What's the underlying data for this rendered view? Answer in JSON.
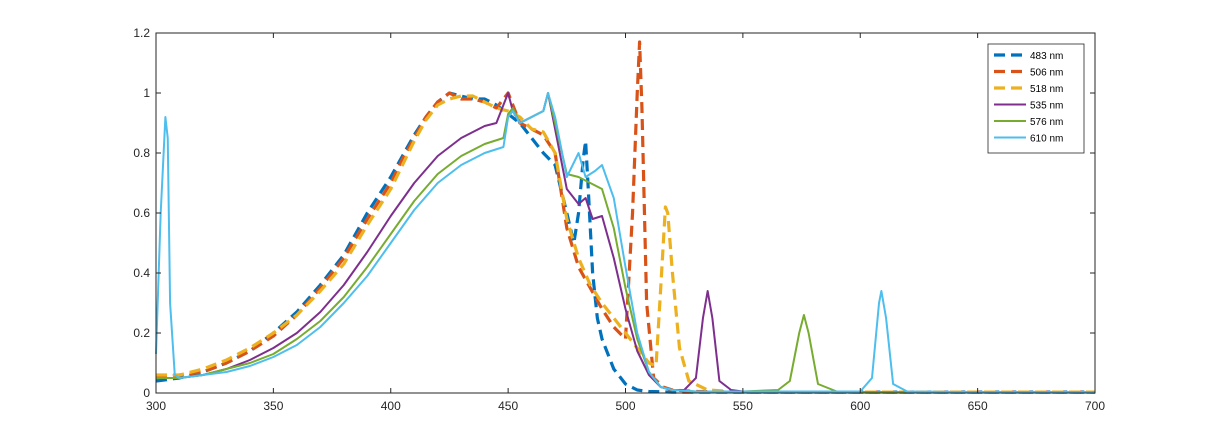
{
  "chart_data": {
    "type": "line",
    "title": "",
    "xlabel": "",
    "ylabel": "",
    "xlim": [
      300,
      700
    ],
    "ylim": [
      0,
      1.2
    ],
    "x_ticks": [
      300,
      350,
      400,
      450,
      500,
      550,
      600,
      650,
      700
    ],
    "x_tick_labels": [
      "300",
      "350",
      "400",
      "450",
      "500",
      "550",
      "600",
      "650",
      "700"
    ],
    "y_ticks": [
      0,
      0.2,
      0.4,
      0.6,
      0.8,
      1,
      1.2
    ],
    "y_tick_labels": [
      "0",
      "0.2",
      "0.4",
      "0.6",
      "0.8",
      "1",
      "1.2"
    ],
    "grid": false,
    "legend_position": "top-right",
    "series": [
      {
        "name": "483 nm",
        "color": "#0072BD",
        "dashed": true,
        "x": [
          300,
          310,
          320,
          330,
          340,
          350,
          360,
          370,
          380,
          390,
          400,
          405,
          410,
          415,
          420,
          425,
          430,
          435,
          440,
          445,
          450,
          455,
          460,
          465,
          470,
          475,
          478,
          480,
          482,
          483,
          484,
          486,
          488,
          490,
          495,
          500,
          505,
          510,
          520,
          540,
          560,
          600,
          650,
          700
        ],
        "y": [
          0.04,
          0.05,
          0.07,
          0.1,
          0.14,
          0.2,
          0.27,
          0.36,
          0.46,
          0.6,
          0.72,
          0.79,
          0.86,
          0.92,
          0.97,
          1.0,
          0.99,
          0.98,
          0.98,
          0.96,
          0.93,
          0.9,
          0.85,
          0.8,
          0.76,
          0.6,
          0.5,
          0.6,
          0.78,
          0.84,
          0.7,
          0.4,
          0.25,
          0.18,
          0.08,
          0.03,
          0.01,
          0.005,
          0.003,
          0.003,
          0.003,
          0.003,
          0.003,
          0.003
        ]
      },
      {
        "name": "506 nm",
        "color": "#D95319",
        "dashed": true,
        "x": [
          300,
          310,
          320,
          330,
          340,
          350,
          360,
          370,
          380,
          390,
          400,
          405,
          410,
          415,
          420,
          425,
          430,
          435,
          440,
          445,
          450,
          452,
          455,
          460,
          465,
          470,
          475,
          480,
          485,
          490,
          495,
          500,
          503,
          505,
          506,
          507,
          509,
          512,
          516,
          520,
          530,
          550,
          600,
          650,
          700
        ],
        "y": [
          0.05,
          0.06,
          0.07,
          0.1,
          0.14,
          0.19,
          0.26,
          0.35,
          0.45,
          0.58,
          0.7,
          0.78,
          0.85,
          0.92,
          0.97,
          1.0,
          0.98,
          0.98,
          0.97,
          0.95,
          1.0,
          0.96,
          0.9,
          0.88,
          0.86,
          0.8,
          0.55,
          0.42,
          0.35,
          0.28,
          0.22,
          0.18,
          0.6,
          1.0,
          1.17,
          0.95,
          0.3,
          0.05,
          0.02,
          0.01,
          0.005,
          0.003,
          0.003,
          0.003,
          0.003
        ]
      },
      {
        "name": "518 nm",
        "color": "#EDB120",
        "dashed": true,
        "x": [
          300,
          310,
          320,
          330,
          340,
          350,
          360,
          370,
          380,
          390,
          400,
          405,
          410,
          415,
          420,
          425,
          430,
          435,
          440,
          445,
          450,
          455,
          460,
          465,
          470,
          475,
          480,
          485,
          490,
          495,
          500,
          505,
          510,
          513,
          515,
          517,
          518,
          520,
          523,
          527,
          535,
          550,
          600,
          650,
          700
        ],
        "y": [
          0.06,
          0.06,
          0.08,
          0.11,
          0.15,
          0.2,
          0.26,
          0.34,
          0.43,
          0.56,
          0.68,
          0.76,
          0.84,
          0.91,
          0.96,
          0.98,
          0.99,
          0.99,
          0.97,
          0.95,
          0.94,
          0.92,
          0.88,
          0.87,
          0.8,
          0.58,
          0.45,
          0.36,
          0.3,
          0.25,
          0.2,
          0.15,
          0.1,
          0.09,
          0.35,
          0.62,
          0.6,
          0.4,
          0.15,
          0.04,
          0.01,
          0.003,
          0.003,
          0.003,
          0.003
        ]
      },
      {
        "name": "535 nm",
        "color": "#7E2F8E",
        "dashed": false,
        "x": [
          300,
          310,
          320,
          330,
          340,
          350,
          360,
          370,
          380,
          390,
          400,
          410,
          420,
          430,
          440,
          445,
          448,
          450,
          452,
          455,
          460,
          465,
          467,
          470,
          475,
          480,
          483,
          486,
          490,
          495,
          500,
          505,
          510,
          515,
          520,
          525,
          530,
          533,
          535,
          537,
          540,
          545,
          550,
          600,
          650,
          700
        ],
        "y": [
          0.05,
          0.05,
          0.06,
          0.08,
          0.11,
          0.15,
          0.2,
          0.27,
          0.36,
          0.47,
          0.59,
          0.7,
          0.79,
          0.85,
          0.89,
          0.9,
          0.96,
          1.0,
          0.94,
          0.9,
          0.92,
          0.94,
          1.0,
          0.88,
          0.68,
          0.63,
          0.65,
          0.58,
          0.59,
          0.45,
          0.28,
          0.14,
          0.06,
          0.02,
          0.01,
          0.01,
          0.05,
          0.25,
          0.34,
          0.25,
          0.04,
          0.01,
          0.005,
          0.003,
          0.003,
          0.003
        ]
      },
      {
        "name": "576 nm",
        "color": "#77AC30",
        "dashed": false,
        "x": [
          300,
          310,
          320,
          330,
          340,
          350,
          360,
          370,
          380,
          390,
          400,
          410,
          420,
          430,
          440,
          448,
          450,
          452,
          455,
          460,
          465,
          467,
          470,
          475,
          480,
          485,
          490,
          495,
          500,
          505,
          510,
          515,
          520,
          530,
          550,
          565,
          570,
          574,
          576,
          578,
          582,
          590,
          600,
          650,
          700
        ],
        "y": [
          0.05,
          0.05,
          0.06,
          0.08,
          0.1,
          0.13,
          0.18,
          0.24,
          0.32,
          0.42,
          0.53,
          0.64,
          0.73,
          0.79,
          0.83,
          0.85,
          0.93,
          0.95,
          0.9,
          0.92,
          0.94,
          1.0,
          0.9,
          0.73,
          0.72,
          0.7,
          0.68,
          0.55,
          0.35,
          0.18,
          0.07,
          0.02,
          0.01,
          0.005,
          0.005,
          0.01,
          0.04,
          0.2,
          0.26,
          0.2,
          0.03,
          0.005,
          0.003,
          0.003,
          0.003
        ]
      },
      {
        "name": "610 nm",
        "color": "#4DBEEE",
        "dashed": false,
        "x": [
          300,
          302,
          304,
          305,
          306,
          308,
          310,
          320,
          330,
          340,
          350,
          360,
          370,
          380,
          390,
          400,
          410,
          420,
          430,
          440,
          448,
          450,
          452,
          455,
          460,
          465,
          467,
          470,
          475,
          480,
          483,
          487,
          490,
          495,
          500,
          505,
          510,
          515,
          520,
          530,
          550,
          600,
          605,
          608,
          609,
          611,
          614,
          620,
          650,
          700
        ],
        "y": [
          0.13,
          0.6,
          0.92,
          0.85,
          0.3,
          0.06,
          0.05,
          0.06,
          0.07,
          0.09,
          0.12,
          0.16,
          0.22,
          0.3,
          0.39,
          0.5,
          0.61,
          0.7,
          0.76,
          0.8,
          0.82,
          0.92,
          0.94,
          0.9,
          0.92,
          0.94,
          1.0,
          0.92,
          0.72,
          0.8,
          0.72,
          0.74,
          0.76,
          0.65,
          0.42,
          0.2,
          0.07,
          0.02,
          0.01,
          0.005,
          0.005,
          0.005,
          0.05,
          0.3,
          0.34,
          0.25,
          0.03,
          0.005,
          0.003,
          0.003
        ]
      }
    ]
  }
}
